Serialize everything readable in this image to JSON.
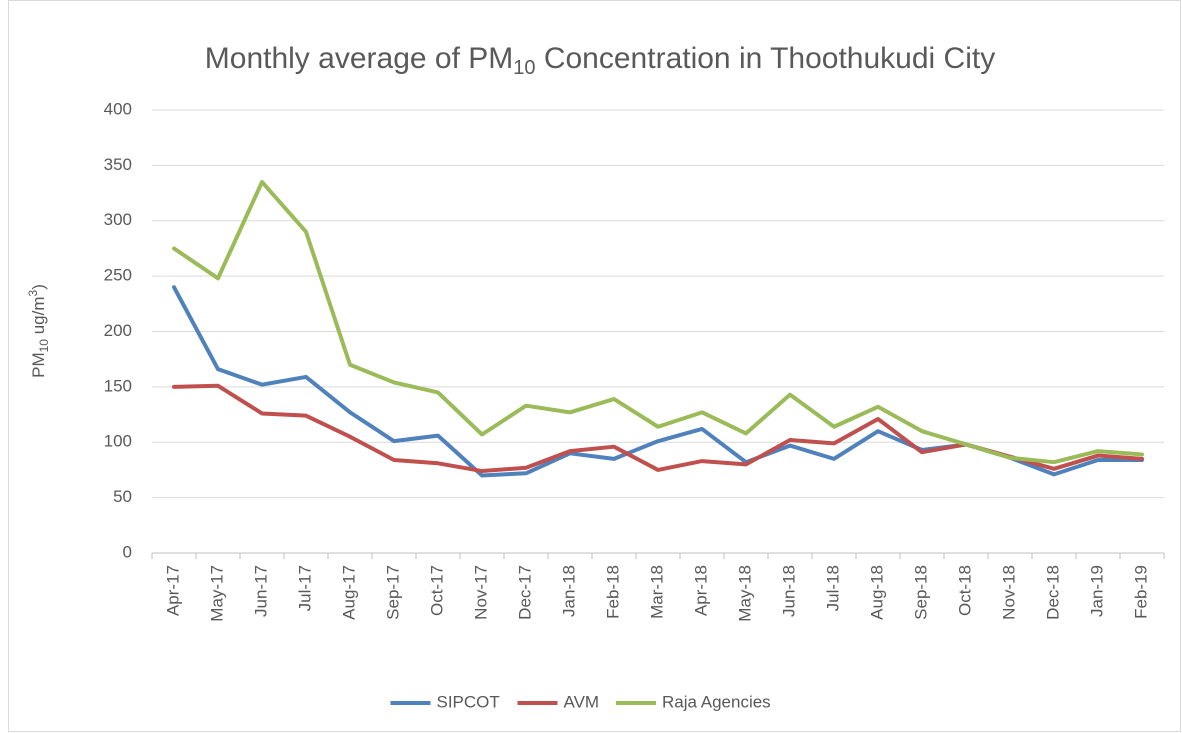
{
  "chart_data": {
    "type": "line",
    "title_parts": [
      "Monthly average of PM",
      "10",
      " Concentration in Thoothukudi City"
    ],
    "y_label_parts": [
      "PM",
      "10",
      " ug/m",
      "3",
      ")"
    ],
    "categories": [
      "Apr-17",
      "May-17",
      "Jun-17",
      "Jul-17",
      "Aug-17",
      "Sep-17",
      "Oct-17",
      "Nov-17",
      "Dec-17",
      "Jan-18",
      "Feb-18",
      "Mar-18",
      "Apr-18",
      "May-18",
      "Jun-18",
      "Jul-18",
      "Aug-18",
      "Sep-18",
      "Oct-18",
      "Nov-18",
      "Dec-18",
      "Jan-19",
      "Feb-19"
    ],
    "series": [
      {
        "name": "SIPCOT",
        "color": "#4f81bd",
        "values": [
          240,
          166,
          152,
          159,
          127,
          101,
          106,
          70,
          72,
          90,
          85,
          101,
          112,
          82,
          97,
          85,
          110,
          93,
          98,
          86,
          71,
          84,
          84
        ]
      },
      {
        "name": "AVM",
        "color": "#c0504d",
        "values": [
          150,
          151,
          126,
          124,
          105,
          84,
          81,
          74,
          77,
          92,
          96,
          75,
          83,
          80,
          102,
          99,
          121,
          91,
          98,
          87,
          76,
          88,
          85
        ]
      },
      {
        "name": "Raja Agencies",
        "color": "#9bbb59",
        "values": [
          275,
          248,
          335,
          290,
          170,
          154,
          145,
          107,
          133,
          127,
          139,
          114,
          127,
          108,
          143,
          114,
          132,
          110,
          98,
          86,
          82,
          92,
          89
        ]
      }
    ],
    "ylim": [
      0,
      400
    ],
    "yticks": [
      0,
      50,
      100,
      150,
      200,
      250,
      300,
      350,
      400
    ],
    "grid": true,
    "legend": "bottom"
  }
}
